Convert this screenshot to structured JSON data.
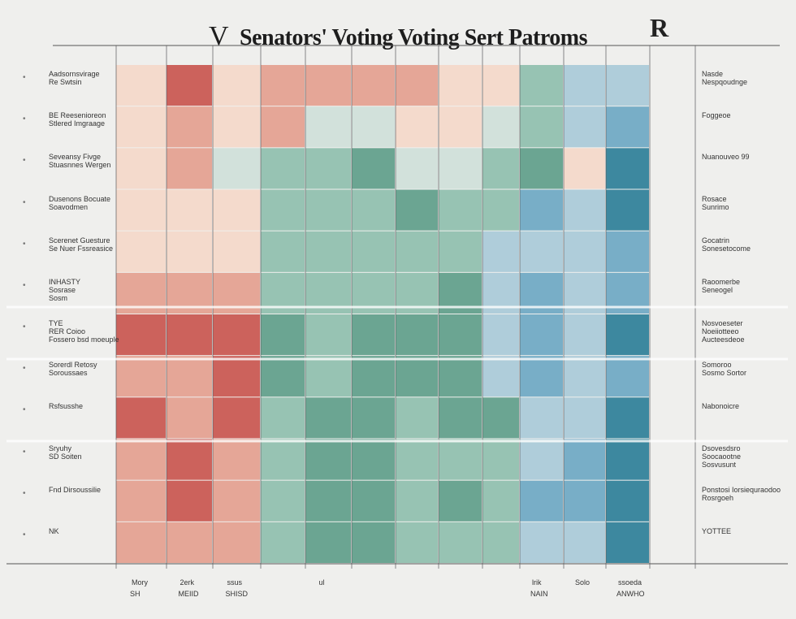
{
  "title": "Senators' Voting Voting Sert Patroms",
  "logo_left": "V",
  "logo_right": "R",
  "chart_data": {
    "type": "heatmap",
    "title": "Senators' Voting Voting Sert Patroms",
    "color_scale": [
      "#a51d20",
      "#c9564f",
      "#e4a08f",
      "#f4d8c9",
      "#cfe0d9",
      "#8fbfae",
      "#5f9e8a",
      "#a9cad8",
      "#6ea8c3",
      "#2e7f98"
    ],
    "columns": [
      "Mory",
      "2erk",
      "ssus",
      "",
      "ul",
      "",
      "",
      "",
      "",
      "lrik",
      "Solo",
      "ssoeda"
    ],
    "column_sublabels": [
      "SH",
      "MEIID",
      "SHISD",
      "",
      "",
      "",
      "",
      "",
      "",
      "NAIN",
      "",
      "ANWHO"
    ],
    "rows_left": [
      "Aadsornsvirage / Re Swtsin",
      "BE Reesenioreon / Stlered Imgraage",
      "Seveansy Fivge / Stuasnnes Wergen",
      "Dusenons Bocuate / Soavodmen",
      "Scerenet Guesture / Se Nuer Fssreasice",
      "INHASTY / Sosrase / Sosm",
      "TYE / RER Coioo / Fossero bsd moeuple",
      "Sorerdl Retosy / Soroussaes",
      "Rsfsusshe",
      "Sryuhy / SD Soiten",
      "Fnd Dirsoussilie",
      "NK"
    ],
    "rows_right": [
      "Nasde / Nespqoudnge",
      "Foggeoe",
      "Nuanouveo 99",
      "Rosace / Sunrimo",
      "Gocatrin / Sonesetocome",
      "Raoomerbe / Seneogel",
      "Nosvoeseter / Noeiiotteeo / Aucteesdeoe",
      "Somoroo / Sosmo Sortor",
      "Nabonoicre",
      "Dsovesdsro / Soocaootne / Sosvusunt",
      "Ponstosi Iorsiequraodoo / Rosrgoeh",
      "YOTTEE"
    ],
    "values": [
      [
        3,
        1,
        3,
        2,
        2,
        2,
        2,
        3,
        3,
        5,
        7,
        7
      ],
      [
        3,
        2,
        3,
        2,
        4,
        4,
        3,
        3,
        4,
        5,
        7,
        8
      ],
      [
        3,
        2,
        4,
        5,
        5,
        6,
        4,
        4,
        5,
        6,
        3,
        9
      ],
      [
        3,
        3,
        3,
        5,
        5,
        5,
        6,
        5,
        5,
        8,
        7,
        9
      ],
      [
        3,
        3,
        3,
        5,
        5,
        5,
        5,
        5,
        7,
        7,
        7,
        8
      ],
      [
        2,
        2,
        2,
        5,
        5,
        5,
        5,
        6,
        7,
        8,
        7,
        8
      ],
      [
        1,
        1,
        1,
        6,
        5,
        6,
        6,
        6,
        7,
        8,
        7,
        9
      ],
      [
        2,
        2,
        1,
        6,
        5,
        6,
        6,
        6,
        7,
        8,
        7,
        8
      ],
      [
        1,
        2,
        1,
        5,
        6,
        6,
        5,
        6,
        6,
        7,
        7,
        9
      ],
      [
        2,
        1,
        2,
        5,
        6,
        6,
        5,
        5,
        5,
        7,
        8,
        9
      ],
      [
        2,
        1,
        2,
        5,
        6,
        6,
        5,
        6,
        5,
        8,
        8,
        9
      ],
      [
        2,
        2,
        2,
        5,
        6,
        6,
        5,
        5,
        5,
        7,
        7,
        9
      ]
    ]
  }
}
